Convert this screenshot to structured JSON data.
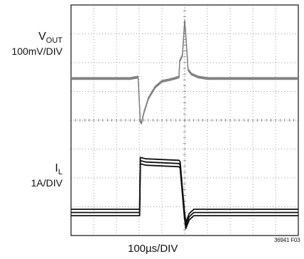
{
  "chart_data": {
    "type": "line",
    "title": "",
    "xlabel": "100µs/DIV",
    "x_divisions": 10,
    "y_divisions": 8,
    "grid": true,
    "figure_id": "36941 F03",
    "series": [
      {
        "name": "V_OUT",
        "label_main": "V",
        "label_sub": "OUT",
        "scale": "100mV/DIV",
        "color": "#808080",
        "x": [
          0,
          2.6,
          2.95,
          3.05,
          3.1,
          3.2,
          3.4,
          3.7,
          4.0,
          4.3,
          4.55,
          4.75,
          4.78,
          4.9,
          5.0,
          5.05,
          5.15,
          5.3,
          5.6,
          6.0,
          10
        ],
        "y": [
          0,
          0,
          0.05,
          -1.5,
          -1.55,
          -1.2,
          -0.7,
          -0.3,
          -0.1,
          -0.05,
          0,
          0.05,
          0.6,
          0.8,
          2.0,
          1.5,
          0.3,
          0.15,
          0.05,
          0,
          0
        ]
      },
      {
        "name": "I_L",
        "label_main": "I",
        "label_sub": "L",
        "scale": "1A/DIV",
        "color": "#111111",
        "x": [
          0,
          3.02,
          3.05,
          3.3,
          4.75,
          4.8,
          4.98,
          5.05,
          5.2,
          5.4,
          10
        ],
        "y": [
          0,
          0,
          1.8,
          1.75,
          1.7,
          1.65,
          0,
          -0.45,
          -0.15,
          0,
          0
        ]
      }
    ]
  }
}
